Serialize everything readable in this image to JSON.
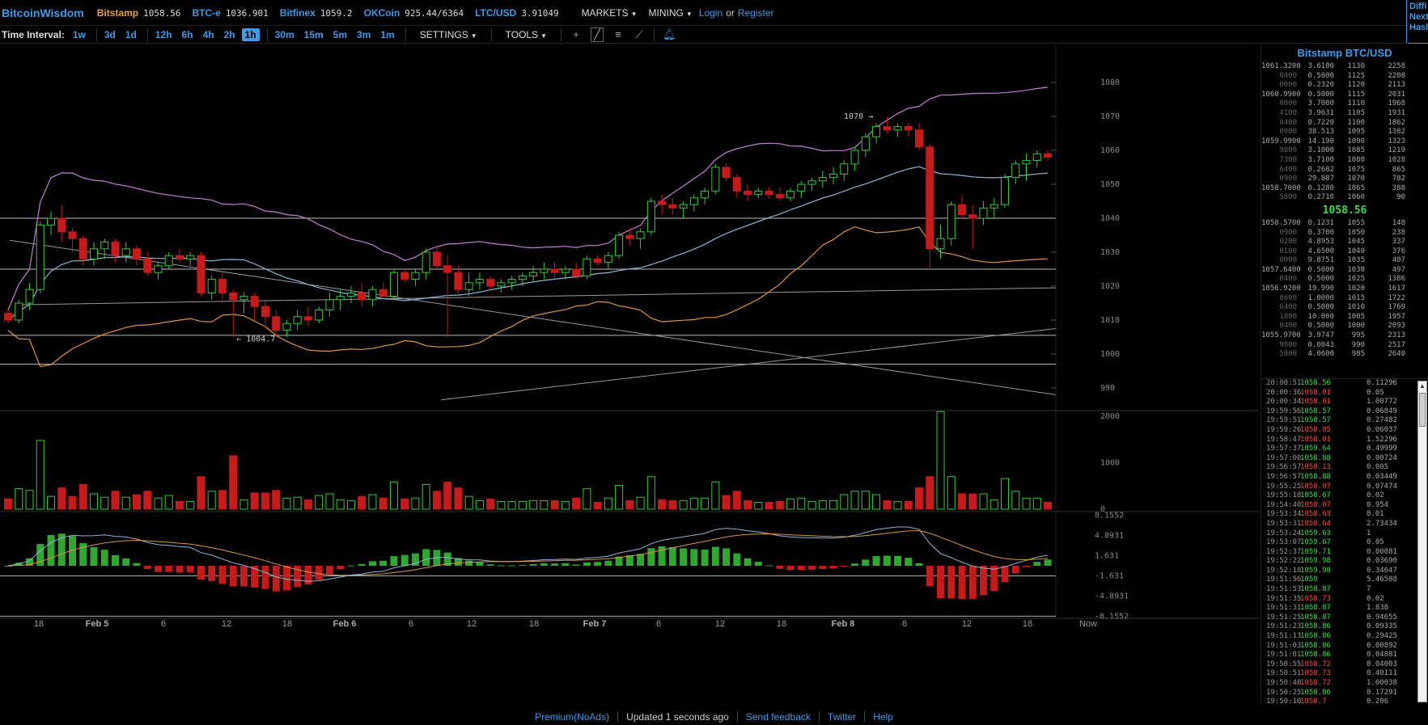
{
  "topbar": {
    "brand": "BitcoinWisdom",
    "tickers": [
      {
        "name": "Bitstamp",
        "value": "1058.56",
        "color": "#e8a23c"
      },
      {
        "name": "BTC-e",
        "value": "1036.901",
        "color": "#3d9be9"
      },
      {
        "name": "Bitfinex",
        "value": "1059.2",
        "color": "#3d9be9"
      },
      {
        "name": "OKCoin",
        "value": "925.44/6364",
        "color": "#3d9be9"
      },
      {
        "name": "LTC/USD",
        "value": "3.91049",
        "color": "#3d9be9"
      }
    ],
    "menus": [
      "MARKETS",
      "MINING"
    ],
    "login": "Login",
    "or": "or",
    "register": "Register",
    "right_links": [
      "Diffi",
      "Next",
      "Hash"
    ]
  },
  "toolbar": {
    "time_interval_label": "Time Interval:",
    "intervals_group1": [
      "1w",
      "3d",
      "1d"
    ],
    "intervals_group2": [
      "12h",
      "6h",
      "4h",
      "2h",
      "1h"
    ],
    "intervals_group3": [
      "30m",
      "15m",
      "5m",
      "3m",
      "1m"
    ],
    "active_interval": "1h",
    "settings": "SETTINGS",
    "tools": "TOOLS"
  },
  "chart_data": {
    "type": "candlestick",
    "market": "Bitstamp BTC/USD",
    "interval": "1h",
    "price_axis": [
      1080,
      1070,
      1060,
      1050,
      1040,
      1030,
      1020,
      1010,
      1000,
      990
    ],
    "volume_axis": [
      2000,
      1000,
      0
    ],
    "macd_axis": [
      "8.1552",
      "4.8931",
      "1.631",
      "-1.631",
      "-4.8931",
      "-8.1552"
    ],
    "date_ticks": [
      "18",
      "Feb 5",
      "6",
      "12",
      "18",
      "Feb 6",
      "6",
      "12",
      "18",
      "Feb 7",
      "6",
      "12",
      "18",
      "Feb 8",
      "6",
      "12",
      "18",
      "Now"
    ],
    "annotations": [
      {
        "text": "1070 →",
        "price": 1070
      },
      {
        "text": "← 1004.7",
        "price": 1004.7
      }
    ],
    "candles": [
      [
        1012,
        1013,
        1009,
        1010
      ],
      [
        1010,
        1016,
        1009,
        1015
      ],
      [
        1015,
        1021,
        1013,
        1019
      ],
      [
        1019,
        1039,
        1018,
        1038
      ],
      [
        1038,
        1042,
        1035,
        1040
      ],
      [
        1040,
        1044,
        1033,
        1036
      ],
      [
        1036,
        1037,
        1030,
        1034
      ],
      [
        1034,
        1035,
        1026,
        1028
      ],
      [
        1028,
        1033,
        1026,
        1031
      ],
      [
        1031,
        1034,
        1028,
        1033
      ],
      [
        1033,
        1034,
        1027,
        1029
      ],
      [
        1029,
        1033,
        1027,
        1031
      ],
      [
        1031,
        1032,
        1026,
        1028
      ],
      [
        1028,
        1030,
        1023,
        1024
      ],
      [
        1024,
        1027,
        1022,
        1026
      ],
      [
        1026,
        1030,
        1025,
        1029
      ],
      [
        1029,
        1031,
        1027,
        1028
      ],
      [
        1028,
        1030,
        1026,
        1029
      ],
      [
        1029,
        1030,
        1017,
        1018
      ],
      [
        1018,
        1023,
        1016,
        1022
      ],
      [
        1022,
        1024,
        1016,
        1018
      ],
      [
        1018,
        1019,
        1005,
        1016
      ],
      [
        1016,
        1018,
        1012,
        1017
      ],
      [
        1017,
        1018,
        1010,
        1014
      ],
      [
        1014,
        1016,
        1008,
        1011
      ],
      [
        1011,
        1013,
        1005,
        1007
      ],
      [
        1007,
        1010,
        1005,
        1009
      ],
      [
        1009,
        1013,
        1007,
        1011
      ],
      [
        1011,
        1014,
        1008,
        1010
      ],
      [
        1010,
        1014,
        1009,
        1013
      ],
      [
        1013,
        1018,
        1011,
        1016
      ],
      [
        1016,
        1019,
        1013,
        1017
      ],
      [
        1017,
        1020,
        1015,
        1018
      ],
      [
        1018,
        1021,
        1014,
        1016
      ],
      [
        1016,
        1020,
        1014,
        1019
      ],
      [
        1019,
        1021,
        1016,
        1017
      ],
      [
        1017,
        1025,
        1016,
        1024
      ],
      [
        1024,
        1025,
        1021,
        1022
      ],
      [
        1022,
        1025,
        1020,
        1024
      ],
      [
        1024,
        1031,
        1022,
        1030
      ],
      [
        1030,
        1032,
        1025,
        1026
      ],
      [
        1026,
        1029,
        1005,
        1024
      ],
      [
        1024,
        1026,
        1018,
        1019
      ],
      [
        1019,
        1024,
        1017,
        1021
      ],
      [
        1021,
        1024,
        1019,
        1022
      ],
      [
        1022,
        1023,
        1019,
        1020
      ],
      [
        1020,
        1022,
        1018,
        1021
      ],
      [
        1021,
        1023,
        1019,
        1022
      ],
      [
        1022,
        1024,
        1020,
        1023
      ],
      [
        1023,
        1026,
        1021,
        1024
      ],
      [
        1024,
        1027,
        1022,
        1025
      ],
      [
        1025,
        1027,
        1022,
        1024
      ],
      [
        1024,
        1026,
        1022,
        1025
      ],
      [
        1025,
        1027,
        1022,
        1023
      ],
      [
        1023,
        1029,
        1022,
        1028
      ],
      [
        1028,
        1029,
        1026,
        1027
      ],
      [
        1027,
        1030,
        1025,
        1029
      ],
      [
        1029,
        1036,
        1028,
        1035
      ],
      [
        1035,
        1037,
        1032,
        1034
      ],
      [
        1034,
        1037,
        1031,
        1036
      ],
      [
        1036,
        1046,
        1035,
        1045
      ],
      [
        1045,
        1047,
        1041,
        1044
      ],
      [
        1044,
        1046,
        1041,
        1043
      ],
      [
        1043,
        1045,
        1040,
        1044
      ],
      [
        1044,
        1047,
        1042,
        1046
      ],
      [
        1046,
        1049,
        1044,
        1048
      ],
      [
        1048,
        1056,
        1047,
        1055
      ],
      [
        1055,
        1056,
        1051,
        1052
      ],
      [
        1052,
        1053,
        1046,
        1048
      ],
      [
        1048,
        1050,
        1045,
        1047
      ],
      [
        1047,
        1049,
        1046,
        1048
      ],
      [
        1048,
        1049,
        1046,
        1047
      ],
      [
        1047,
        1049,
        1045,
        1046
      ],
      [
        1046,
        1049,
        1045,
        1048
      ],
      [
        1048,
        1051,
        1046,
        1050
      ],
      [
        1050,
        1052,
        1048,
        1051
      ],
      [
        1051,
        1054,
        1049,
        1052
      ],
      [
        1052,
        1055,
        1050,
        1053
      ],
      [
        1053,
        1057,
        1051,
        1056
      ],
      [
        1056,
        1061,
        1054,
        1060
      ],
      [
        1060,
        1065,
        1058,
        1064
      ],
      [
        1064,
        1068,
        1062,
        1067
      ],
      [
        1067,
        1070,
        1065,
        1066
      ],
      [
        1066,
        1068,
        1064,
        1067
      ],
      [
        1067,
        1068,
        1064,
        1066
      ],
      [
        1066,
        1068,
        1060,
        1061
      ],
      [
        1061,
        1062,
        1025,
        1031
      ],
      [
        1031,
        1038,
        1028,
        1034
      ],
      [
        1034,
        1045,
        1032,
        1044
      ],
      [
        1044,
        1047,
        1040,
        1041
      ],
      [
        1041,
        1044,
        1031,
        1040
      ],
      [
        1040,
        1045,
        1038,
        1043
      ],
      [
        1043,
        1046,
        1040,
        1044
      ],
      [
        1044,
        1053,
        1043,
        1052
      ],
      [
        1052,
        1057,
        1050,
        1056
      ],
      [
        1056,
        1059,
        1051,
        1057
      ],
      [
        1057,
        1060,
        1055,
        1059
      ],
      [
        1059,
        1060,
        1057,
        1058
      ]
    ]
  },
  "orderbook": {
    "title": "Bitstamp BTC/USD",
    "asks": [
      [
        "1061.3200",
        "3.6100",
        "1130",
        "2258"
      ],
      [
        "0400",
        "0.5000",
        "1125",
        "2208"
      ],
      [
        "0000",
        "0.2320",
        "1120",
        "2113"
      ],
      [
        "1060.9900",
        "0.5000",
        "1115",
        "2031"
      ],
      [
        "8000",
        "3.7000",
        "1110",
        "1968"
      ],
      [
        "4100",
        "3.9631",
        "1105",
        "1931"
      ],
      [
        "0400",
        "0.7220",
        "1100",
        "1862"
      ],
      [
        "0000",
        "38.513",
        "1095",
        "1382"
      ],
      [
        "1059.9900",
        "14.190",
        "1090",
        "1323"
      ],
      [
        "9800",
        "3.1000",
        "1085",
        "1219"
      ],
      [
        "7300",
        "3.7100",
        "1080",
        "1028"
      ],
      [
        "6400",
        "0.2682",
        "1075",
        "865"
      ],
      [
        "0900",
        "29.887",
        "1070",
        "782"
      ],
      [
        "1058.7000",
        "0.1280",
        "1065",
        "388"
      ],
      [
        "5800",
        "0.2710",
        "1060",
        "90"
      ]
    ],
    "last_price": "1058.56",
    "bids": [
      [
        "1058.5700",
        "0.1231",
        "1055",
        "148"
      ],
      [
        "0900",
        "0.3700",
        "1050",
        "238"
      ],
      [
        "0200",
        "4.8953",
        "1045",
        "337"
      ],
      [
        "0100",
        "4.6500",
        "1040",
        "376"
      ],
      [
        "0000",
        "9.8751",
        "1035",
        "407"
      ],
      [
        "1057.6400",
        "0.5000",
        "1030",
        "497"
      ],
      [
        "0400",
        "0.5000",
        "1025",
        "1386"
      ],
      [
        "1056.9200",
        "19.990",
        "1020",
        "1617"
      ],
      [
        "8600",
        "1.0000",
        "1015",
        "1722"
      ],
      [
        "6400",
        "0.5000",
        "1010",
        "1769"
      ],
      [
        "1800",
        "10.000",
        "1005",
        "1957"
      ],
      [
        "0400",
        "0.5000",
        "1000",
        "2093"
      ],
      [
        "1055.9700",
        "3.9747",
        "995",
        "2313"
      ],
      [
        "9000",
        "0.0043",
        "990",
        "2517"
      ],
      [
        "5800",
        "4.0600",
        "985",
        "2640"
      ]
    ]
  },
  "trades": [
    [
      "20:00:51",
      "1058.56",
      "0.11296",
      "up"
    ],
    [
      "20:00:36",
      "1058.01",
      "0.05",
      "down"
    ],
    [
      "20:00:34",
      "1058.01",
      "1.00772",
      "down"
    ],
    [
      "19:59:56",
      "1058.57",
      "0.06849",
      "up"
    ],
    [
      "19:59:51",
      "1058.57",
      "0.27482",
      "up"
    ],
    [
      "19:59:26",
      "1058.05",
      "0.06037",
      "down"
    ],
    [
      "19:58:47",
      "1058.01",
      "1.52296",
      "down"
    ],
    [
      "19:57:37",
      "1059.64",
      "0.49999",
      "up"
    ],
    [
      "19:57:00",
      "1058.88",
      "0.00724",
      "up"
    ],
    [
      "19:56:57",
      "1058.13",
      "0.005",
      "down"
    ],
    [
      "19:56:57",
      "1058.88",
      "0.03449",
      "up"
    ],
    [
      "19:55:25",
      "1058.07",
      "0.07474",
      "down"
    ],
    [
      "19:55:18",
      "1058.67",
      "0.02",
      "up"
    ],
    [
      "19:54:40",
      "1058.07",
      "0.954",
      "down"
    ],
    [
      "19:53:34",
      "1058.63",
      "0.01",
      "down"
    ],
    [
      "19:53:31",
      "1058.64",
      "2.73434",
      "down"
    ],
    [
      "19:53:24",
      "1059.63",
      "1",
      "up"
    ],
    [
      "19:53:07",
      "1059.67",
      "0.05",
      "up"
    ],
    [
      "19:52:37",
      "1059.71",
      "0.00081",
      "up"
    ],
    [
      "19:52:22",
      "1059.98",
      "0.03690",
      "up"
    ],
    [
      "19:52:18",
      "1059.98",
      "0.34647",
      "up"
    ],
    [
      "19:51:56",
      "1059",
      "5.46588",
      "up"
    ],
    [
      "19:51:53",
      "1058.87",
      "7",
      "up"
    ],
    [
      "19:51:35",
      "1058.73",
      "0.02",
      "down"
    ],
    [
      "19:51:31",
      "1058.87",
      "1.838",
      "up"
    ],
    [
      "19:51:25",
      "1058.87",
      "0.94655",
      "up"
    ],
    [
      "19:51:23",
      "1058.86",
      "0.09335",
      "up"
    ],
    [
      "19:51:13",
      "1058.86",
      "0.29425",
      "up"
    ],
    [
      "19:51:03",
      "1058.86",
      "0.00892",
      "up"
    ],
    [
      "19:51:01",
      "1058.86",
      "0.04881",
      "up"
    ],
    [
      "19:50:55",
      "1058.72",
      "0.04003",
      "down"
    ],
    [
      "19:50:51",
      "1058.73",
      "0.40111",
      "down"
    ],
    [
      "19:50:40",
      "1058.72",
      "1.00038",
      "down"
    ],
    [
      "19:50:25",
      "1058.86",
      "0.17291",
      "up"
    ],
    [
      "19:50:10",
      "1058.7",
      "0.206",
      "down"
    ]
  ],
  "footer": {
    "premium": "Premium(NoAds)",
    "updated": "Updated 1 seconds ago",
    "feedback": "Send feedback",
    "twitter": "Twitter",
    "help": "Help"
  },
  "colors": {
    "up": "#33cc33",
    "down": "#c81a1a",
    "accent": "#3d9be9",
    "bollinger": "#c87dd9",
    "sma": "#8ab8d8",
    "ema": "#e0963c"
  }
}
